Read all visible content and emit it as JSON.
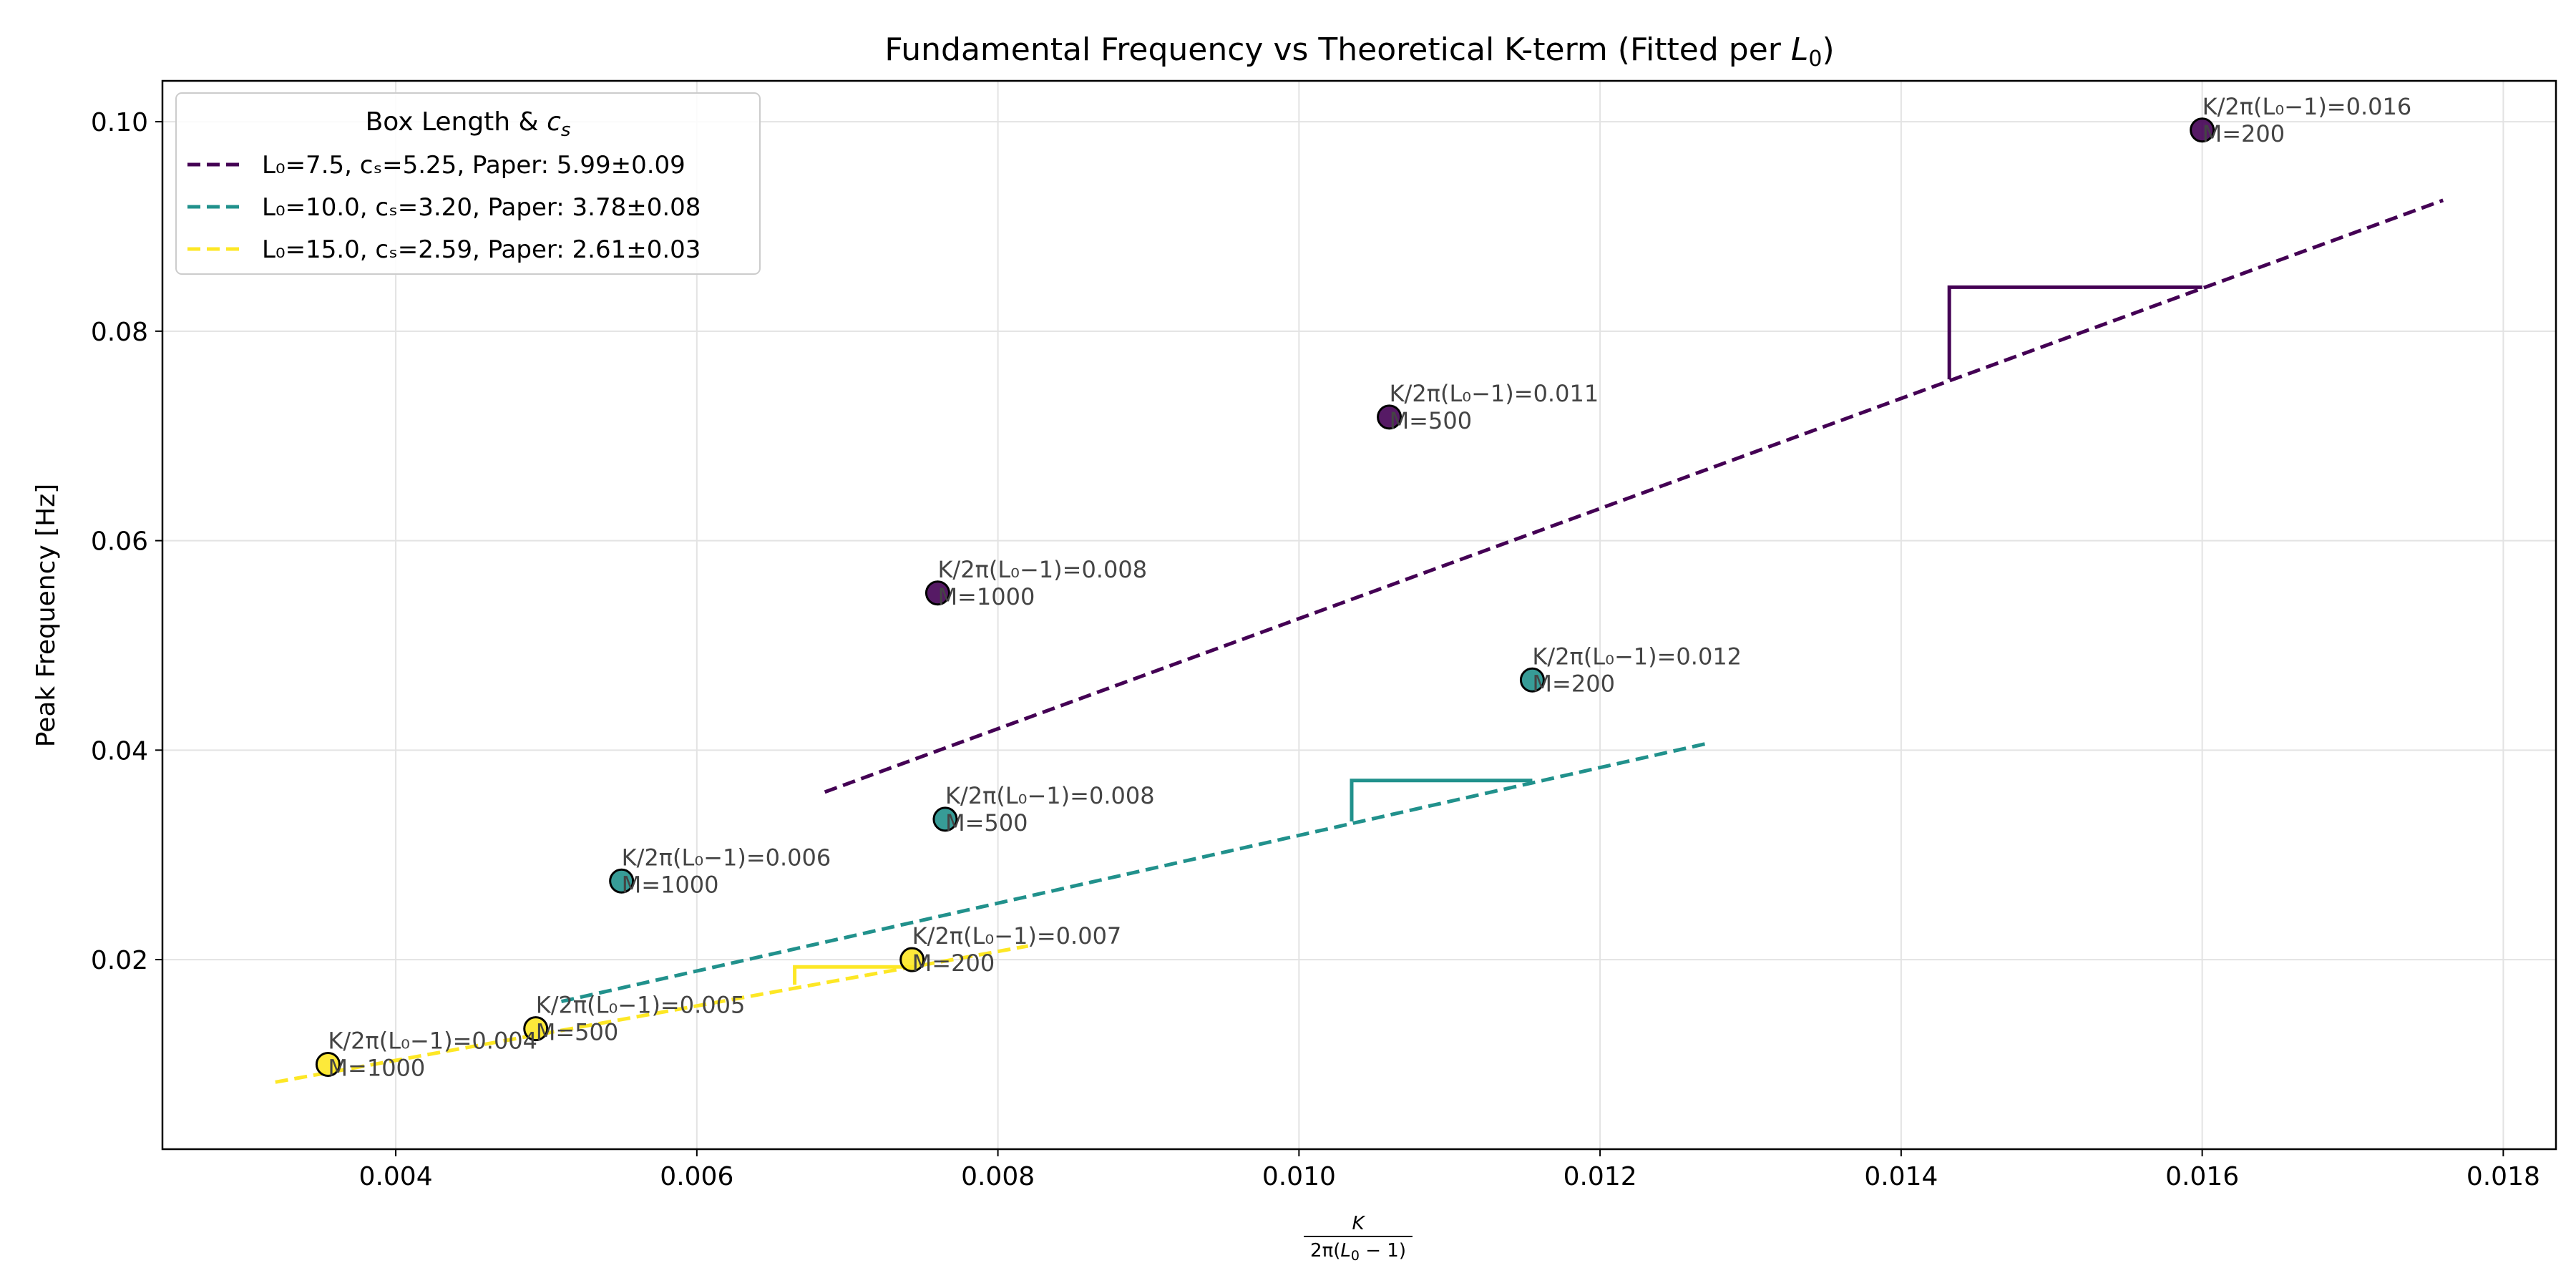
{
  "chart_data": {
    "type": "scatter",
    "title": "Fundamental Frequency vs Theoretical K-term (Fitted per L₀)",
    "xlabel": "K / 2π(L₀ − 1)",
    "ylabel": "Peak Frequency [Hz]",
    "xlim": [
      0.00245,
      0.01835
    ],
    "ylim": [
      0.0019,
      0.1039
    ],
    "xticks": [
      0.004,
      0.006,
      0.008,
      0.01,
      0.012,
      0.014,
      0.016,
      0.018
    ],
    "xtick_labels": [
      "0.004",
      "0.006",
      "0.008",
      "0.010",
      "0.012",
      "0.014",
      "0.016",
      "0.018"
    ],
    "yticks": [
      0.02,
      0.04,
      0.06,
      0.08,
      0.1
    ],
    "ytick_labels": [
      "0.02",
      "0.04",
      "0.06",
      "0.08",
      "0.10"
    ],
    "grid": true,
    "legend": {
      "title": "Box Length & cₛ",
      "placement": "top-left",
      "entries": [
        "L₀=7.5, cₛ=5.25, Paper: 5.99±0.09",
        "L₀=10.0, cₛ=3.20, Paper: 3.78±0.08",
        "L₀=15.0, cₛ=2.59, Paper: 2.61±0.03"
      ]
    },
    "series": [
      {
        "name": "L₀=7.5, cₛ=5.25, Paper: 5.99±0.09",
        "color": "#440154",
        "points": [
          {
            "x": 0.0076,
            "y": 0.055,
            "label1": "K/2π(L₀−1)=0.008",
            "label2": "M=1000"
          },
          {
            "x": 0.0106,
            "y": 0.0718,
            "label1": "K/2π(L₀−1)=0.011",
            "label2": "M=500"
          },
          {
            "x": 0.016,
            "y": 0.0992,
            "label1": "K/2π(L₀−1)=0.016",
            "label2": "M=200"
          }
        ],
        "fit_line": {
          "x": [
            0.00685,
            0.0176
          ],
          "y": [
            0.036,
            0.0925
          ]
        },
        "slope_triangle": {
          "x": [
            0.01432,
            0.016
          ],
          "y": [
            0.0754,
            0.0842
          ]
        }
      },
      {
        "name": "L₀=10.0, cₛ=3.20, Paper: 3.78±0.08",
        "color": "#21918c",
        "points": [
          {
            "x": 0.0055,
            "y": 0.0275,
            "label1": "K/2π(L₀−1)=0.006",
            "label2": "M=1000"
          },
          {
            "x": 0.00765,
            "y": 0.0334,
            "label1": "K/2π(L₀−1)=0.008",
            "label2": "M=500"
          },
          {
            "x": 0.01155,
            "y": 0.0467,
            "label1": "K/2π(L₀−1)=0.012",
            "label2": "M=200"
          }
        ],
        "fit_line": {
          "x": [
            0.0051,
            0.0127
          ],
          "y": [
            0.016,
            0.0406
          ]
        },
        "slope_triangle": {
          "x": [
            0.01035,
            0.01155
          ],
          "y": [
            0.0332,
            0.0371
          ]
        }
      },
      {
        "name": "L₀=15.0, cₛ=2.59, Paper: 2.61±0.03",
        "color": "#fde725",
        "points": [
          {
            "x": 0.00355,
            "y": 0.01,
            "label1": "K/2π(L₀−1)=0.004",
            "label2": "M=1000"
          },
          {
            "x": 0.00493,
            "y": 0.0134,
            "label1": "K/2π(L₀−1)=0.005",
            "label2": "M=500"
          },
          {
            "x": 0.00743,
            "y": 0.02,
            "label1": "K/2π(L₀−1)=0.007",
            "label2": "M=200"
          }
        ],
        "fit_line": {
          "x": [
            0.0032,
            0.0082
          ],
          "y": [
            0.0083,
            0.0213
          ]
        },
        "slope_triangle": {
          "x": [
            0.00665,
            0.00743
          ],
          "y": [
            0.0176,
            0.0193
          ]
        }
      }
    ]
  }
}
